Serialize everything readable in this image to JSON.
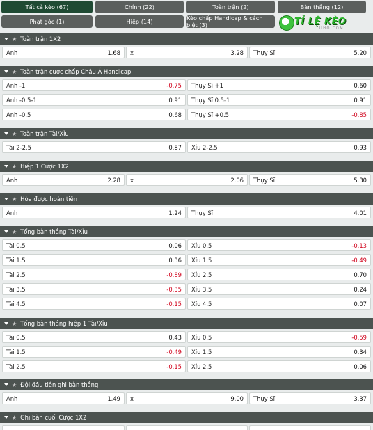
{
  "tabs_row1": [
    {
      "label": "Tất cả kèo (67)",
      "active": true
    },
    {
      "label": "Chính (22)",
      "active": false
    },
    {
      "label": "Toàn trận (2)",
      "active": false
    },
    {
      "label": "Bàn thắng (12)",
      "active": false
    }
  ],
  "tabs_row2": [
    {
      "label": "Phạt góc (1)"
    },
    {
      "label": "Hiệp (14)"
    },
    {
      "label": "Kèo chấp Handicap & cách biệt (3)"
    }
  ],
  "logo": {
    "text": "TỈ LỆ KÈO",
    "sub": "LUHO.COM"
  },
  "sections": [
    {
      "title": "Toàn trận 1X2",
      "cols": 3,
      "rows": [
        [
          {
            "label": "Anh",
            "odd": "1.68"
          },
          {
            "label": "x",
            "odd": "3.28"
          },
          {
            "label": "Thụy Sĩ",
            "odd": "5.20"
          }
        ]
      ]
    },
    {
      "title": "Toàn trận cược chấp Châu Á Handicap",
      "cols": 2,
      "rows": [
        [
          {
            "label": "Anh -1",
            "odd": "-0.75"
          },
          {
            "label": "Thụy Sĩ +1",
            "odd": "0.60"
          }
        ],
        [
          {
            "label": "Anh -0.5-1",
            "odd": "0.91"
          },
          {
            "label": "Thụy Sĩ 0.5-1",
            "odd": "0.91"
          }
        ],
        [
          {
            "label": "Anh -0.5",
            "odd": "0.68"
          },
          {
            "label": "Thụy Sĩ +0.5",
            "odd": "-0.85"
          }
        ]
      ]
    },
    {
      "title": "Toàn trận Tài/Xỉu",
      "cols": 2,
      "rows": [
        [
          {
            "label": "Tài 2-2.5",
            "odd": "0.87"
          },
          {
            "label": "Xỉu 2-2.5",
            "odd": "0.93"
          }
        ]
      ]
    },
    {
      "title": "Hiệp 1 Cược 1X2",
      "cols": 3,
      "rows": [
        [
          {
            "label": "Anh",
            "odd": "2.28"
          },
          {
            "label": "x",
            "odd": "2.06"
          },
          {
            "label": "Thụy Sĩ",
            "odd": "5.30"
          }
        ]
      ]
    },
    {
      "title": "Hòa được hoàn tiền",
      "cols": 2,
      "rows": [
        [
          {
            "label": "Anh",
            "odd": "1.24"
          },
          {
            "label": "Thụy Sĩ",
            "odd": "4.01"
          }
        ]
      ]
    },
    {
      "title": "Tổng bàn thắng Tài/Xỉu",
      "cols": 2,
      "rows": [
        [
          {
            "label": "Tài 0.5",
            "odd": "0.06"
          },
          {
            "label": "Xỉu 0.5",
            "odd": "-0.13"
          }
        ],
        [
          {
            "label": "Tài 1.5",
            "odd": "0.36"
          },
          {
            "label": "Xỉu 1.5",
            "odd": "-0.49"
          }
        ],
        [
          {
            "label": "Tài 2.5",
            "odd": "-0.89"
          },
          {
            "label": "Xỉu 2.5",
            "odd": "0.70"
          }
        ],
        [
          {
            "label": "Tài 3.5",
            "odd": "-0.35"
          },
          {
            "label": "Xỉu 3.5",
            "odd": "0.24"
          }
        ],
        [
          {
            "label": "Tài 4.5",
            "odd": "-0.15"
          },
          {
            "label": "Xỉu 4.5",
            "odd": "0.07"
          }
        ]
      ]
    },
    {
      "title": "Tổng bàn thắng hiệp 1 Tài/Xỉu",
      "cols": 2,
      "rows": [
        [
          {
            "label": "Tài 0.5",
            "odd": "0.43"
          },
          {
            "label": "Xỉu 0.5",
            "odd": "-0.59"
          }
        ],
        [
          {
            "label": "Tài 1.5",
            "odd": "-0.49"
          },
          {
            "label": "Xỉu 1.5",
            "odd": "0.34"
          }
        ],
        [
          {
            "label": "Tài 2.5",
            "odd": "-0.15"
          },
          {
            "label": "Xỉu 2.5",
            "odd": "0.06"
          }
        ]
      ]
    },
    {
      "title": "Đội đầu tiên ghi bàn thắng",
      "cols": 3,
      "rows": [
        [
          {
            "label": "Anh",
            "odd": "1.49"
          },
          {
            "label": "x",
            "odd": "9.00"
          },
          {
            "label": "Thụy Sĩ",
            "odd": "3.37"
          }
        ]
      ]
    },
    {
      "title": "Ghi bàn cuối Cược 1X2",
      "cols": 3,
      "rows": [
        [
          {
            "label": "",
            "odd": ""
          },
          {
            "label": "",
            "odd": ""
          },
          {
            "label": "",
            "odd": ""
          }
        ]
      ]
    }
  ],
  "colors": {
    "tab": "#5b5f5d",
    "tab_active": "#1f4a33",
    "header": "#4c5350",
    "negative": "#d0021b"
  },
  "icons": {
    "collapse": "caret-down-icon",
    "favorite": "star-icon"
  }
}
